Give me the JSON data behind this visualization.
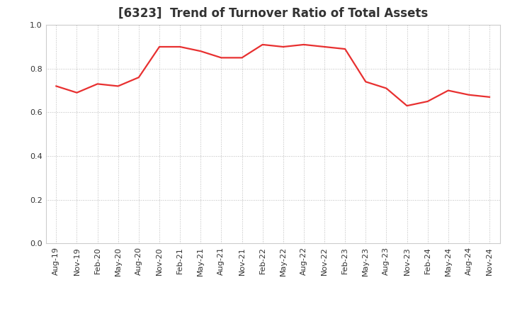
{
  "title": "[6323]  Trend of Turnover Ratio of Total Assets",
  "x_labels": [
    "Aug-19",
    "Nov-19",
    "Feb-20",
    "May-20",
    "Aug-20",
    "Nov-20",
    "Feb-21",
    "May-21",
    "Aug-21",
    "Nov-21",
    "Feb-22",
    "May-22",
    "Aug-22",
    "Nov-22",
    "Feb-23",
    "May-23",
    "Aug-23",
    "Nov-23",
    "Feb-24",
    "May-24",
    "Aug-24",
    "Nov-24"
  ],
  "values": [
    0.72,
    0.69,
    0.73,
    0.72,
    0.76,
    0.9,
    0.9,
    0.88,
    0.85,
    0.85,
    0.91,
    0.9,
    0.91,
    0.9,
    0.89,
    0.74,
    0.71,
    0.63,
    0.65,
    0.7,
    0.68,
    0.67
  ],
  "line_color": "#e83030",
  "line_width": 1.6,
  "ylim": [
    0.0,
    1.0
  ],
  "yticks": [
    0.0,
    0.2,
    0.4,
    0.6,
    0.8,
    1.0
  ],
  "background_color": "#ffffff",
  "grid_color": "#bbbbbb",
  "title_fontsize": 12,
  "tick_fontsize": 8,
  "title_color": "#333333"
}
